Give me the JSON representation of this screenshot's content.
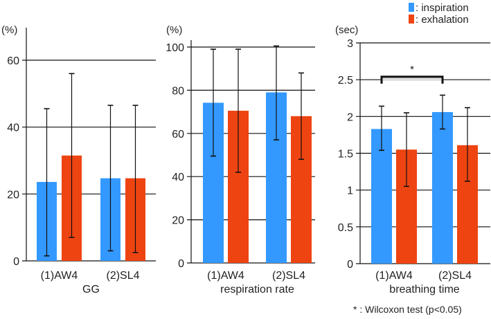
{
  "colors": {
    "inspiration": "#3399ff",
    "exhalation": "#ee4411"
  },
  "legend": {
    "inspiration": ": inspiration",
    "exhalation": ": exhalation"
  },
  "footnote": "* : Wilcoxon test (p<0.05)",
  "chart_data": [
    {
      "type": "bar",
      "title": "",
      "xlabel": "GG",
      "ylabel": "(%)",
      "ylim": [
        0,
        65
      ],
      "yticks": [
        0,
        20,
        40,
        60
      ],
      "ytick_labels": [
        "0",
        "20",
        "40",
        "60"
      ],
      "categories": [
        "(1)AW4",
        "(2)SL4"
      ],
      "series": [
        {
          "name": "inspiration",
          "values": [
            23.6,
            24.7
          ],
          "err_low": [
            1.5,
            3
          ],
          "err_high": [
            45.5,
            46.5
          ]
        },
        {
          "name": "exhalation",
          "values": [
            31.5,
            24.7
          ],
          "err_low": [
            7,
            2.5
          ],
          "err_high": [
            56,
            46.5
          ]
        }
      ]
    },
    {
      "type": "bar",
      "title": "",
      "xlabel": "respiration rate",
      "ylabel": "(%)",
      "ylim": [
        0,
        102
      ],
      "yticks": [
        0,
        20,
        40,
        60,
        80,
        100
      ],
      "ytick_labels": [
        "0",
        "20",
        "40",
        "60",
        "80",
        "100"
      ],
      "categories": [
        "(1)AW4",
        "(2)SL4"
      ],
      "series": [
        {
          "name": "inspiration",
          "values": [
            74.2,
            79
          ],
          "err_low": [
            49.5,
            57
          ],
          "err_high": [
            99,
            100.5
          ]
        },
        {
          "name": "exhalation",
          "values": [
            70.5,
            68
          ],
          "err_low": [
            42,
            48
          ],
          "err_high": [
            99,
            88
          ]
        }
      ]
    },
    {
      "type": "bar",
      "title": "",
      "xlabel": "breathing time",
      "ylabel": "(sec)",
      "ylim": [
        0,
        3
      ],
      "yticks": [
        0,
        0.5,
        1,
        1.5,
        2,
        2.5,
        3
      ],
      "ytick_labels": [
        "0",
        "0.5",
        "1",
        "1.5",
        "2",
        "2.5",
        "3"
      ],
      "categories": [
        "(1)AW4",
        "(2)SL4"
      ],
      "series": [
        {
          "name": "inspiration",
          "values": [
            1.83,
            2.06
          ],
          "err_low": [
            1.54,
            1.83
          ],
          "err_high": [
            2.14,
            2.29
          ]
        },
        {
          "name": "exhalation",
          "values": [
            1.55,
            1.61
          ],
          "err_low": [
            1.05,
            1.12
          ],
          "err_high": [
            2.05,
            2.12
          ]
        }
      ],
      "annotation": {
        "label": "*",
        "between": [
          "(1)AW4 inspiration",
          "(2)SL4 inspiration"
        ],
        "level": 2.55
      }
    }
  ]
}
